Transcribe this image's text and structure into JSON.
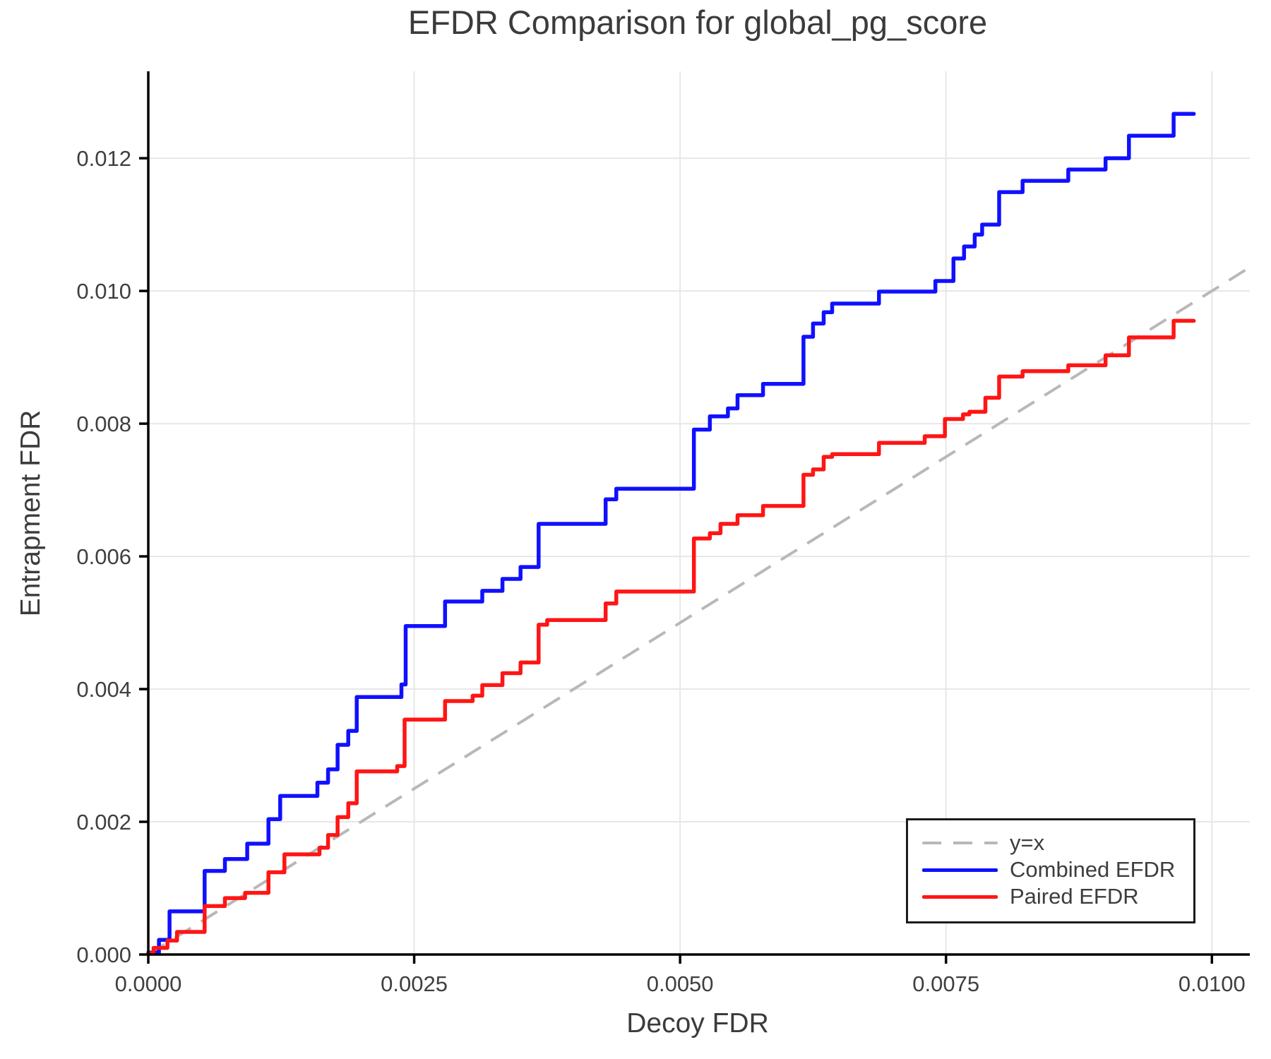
{
  "chart_data": {
    "type": "line",
    "title": "EFDR Comparison for global_pg_score",
    "xlabel": "Decoy FDR",
    "ylabel": "Entrapment FDR",
    "xlim": [
      0,
      0.01033
    ],
    "ylim": [
      0,
      0.01331
    ],
    "grid": true,
    "grid_color": "#e7e7e7",
    "axis_color": "#000000",
    "tick_label_color": "#3f3f3f",
    "xticks": {
      "values": [
        0,
        0.0025,
        0.005,
        0.0075,
        0.01
      ],
      "labels": [
        "0.0000",
        "0.0025",
        "0.0050",
        "0.0075",
        "0.0100"
      ]
    },
    "yticks": {
      "values": [
        0,
        0.002,
        0.004,
        0.006,
        0.008,
        0.01,
        0.012
      ],
      "labels": [
        "0.000",
        "0.002",
        "0.004",
        "0.006",
        "0.008",
        "0.010",
        "0.012"
      ]
    },
    "legend": {
      "position": "lower right",
      "entries": [
        {
          "label": "y=x",
          "color": "#b8b8b8",
          "dashed": true
        },
        {
          "label": "Combined EFDR",
          "color": "#1010ff",
          "dashed": false
        },
        {
          "label": "Paired EFDR",
          "color": "#ff1515",
          "dashed": false
        }
      ]
    },
    "series": [
      {
        "name": "y=x",
        "type": "line",
        "color": "#b8b8b8",
        "width": 4,
        "dash": [
          27,
          17
        ],
        "points": [
          [
            0,
            0
          ],
          [
            0.01033,
            0.01033
          ]
        ]
      },
      {
        "name": "Combined EFDR",
        "type": "step",
        "color": "#1010ff",
        "width": 5.5,
        "x_end": 0.00983,
        "steps": [
          [
            0.0,
            3e-05
          ],
          [
            0.0001,
            0.00022
          ],
          [
            0.0002,
            0.00065
          ],
          [
            0.00053,
            0.00126
          ],
          [
            0.00072,
            0.00144
          ],
          [
            0.00093,
            0.00167
          ],
          [
            0.00113,
            0.00204
          ],
          [
            0.00124,
            0.00239
          ],
          [
            0.00159,
            0.00259
          ],
          [
            0.00169,
            0.00279
          ],
          [
            0.00178,
            0.00316
          ],
          [
            0.00188,
            0.00337
          ],
          [
            0.00196,
            0.00388
          ],
          [
            0.00238,
            0.00407
          ],
          [
            0.00242,
            0.00495
          ],
          [
            0.00279,
            0.00532
          ],
          [
            0.00314,
            0.00548
          ],
          [
            0.00333,
            0.00566
          ],
          [
            0.0035,
            0.00584
          ],
          [
            0.00367,
            0.00649
          ],
          [
            0.0043,
            0.00686
          ],
          [
            0.0044,
            0.00702
          ],
          [
            0.00513,
            0.00791
          ],
          [
            0.00528,
            0.00811
          ],
          [
            0.00545,
            0.00823
          ],
          [
            0.00554,
            0.00843
          ],
          [
            0.00578,
            0.0086
          ],
          [
            0.00616,
            0.00931
          ],
          [
            0.00625,
            0.00951
          ],
          [
            0.00635,
            0.00968
          ],
          [
            0.00643,
            0.00981
          ],
          [
            0.00687,
            0.00999
          ],
          [
            0.0074,
            0.01015
          ],
          [
            0.00757,
            0.01049
          ],
          [
            0.00767,
            0.01067
          ],
          [
            0.00777,
            0.01085
          ],
          [
            0.00784,
            0.011
          ],
          [
            0.008,
            0.01149
          ],
          [
            0.00822,
            0.01166
          ],
          [
            0.00865,
            0.01183
          ],
          [
            0.009,
            0.012
          ],
          [
            0.00922,
            0.01234
          ],
          [
            0.00964,
            0.01267
          ]
        ]
      },
      {
        "name": "Paired EFDR",
        "type": "step",
        "color": "#ff1515",
        "width": 5.5,
        "x_end": 0.00983,
        "steps": [
          [
            0.0,
            2e-05
          ],
          [
            5e-05,
            0.0001
          ],
          [
            0.00018,
            0.00021
          ],
          [
            0.00027,
            0.00034
          ],
          [
            0.00053,
            0.00073
          ],
          [
            0.00072,
            0.00085
          ],
          [
            0.00091,
            0.00093
          ],
          [
            0.00113,
            0.00124
          ],
          [
            0.00128,
            0.00151
          ],
          [
            0.00161,
            0.00161
          ],
          [
            0.00169,
            0.0018
          ],
          [
            0.00178,
            0.00207
          ],
          [
            0.00188,
            0.00228
          ],
          [
            0.00196,
            0.00276
          ],
          [
            0.00234,
            0.00284
          ],
          [
            0.00241,
            0.00354
          ],
          [
            0.00279,
            0.00382
          ],
          [
            0.00305,
            0.0039
          ],
          [
            0.00314,
            0.00406
          ],
          [
            0.00333,
            0.00424
          ],
          [
            0.0035,
            0.0044
          ],
          [
            0.00367,
            0.00497
          ],
          [
            0.00375,
            0.00504
          ],
          [
            0.0043,
            0.00529
          ],
          [
            0.0044,
            0.00547
          ],
          [
            0.00513,
            0.00627
          ],
          [
            0.00528,
            0.00635
          ],
          [
            0.00538,
            0.00649
          ],
          [
            0.00554,
            0.00662
          ],
          [
            0.00578,
            0.00676
          ],
          [
            0.00616,
            0.00723
          ],
          [
            0.00625,
            0.00731
          ],
          [
            0.00635,
            0.0075
          ],
          [
            0.00643,
            0.00754
          ],
          [
            0.00687,
            0.00771
          ],
          [
            0.0073,
            0.00781
          ],
          [
            0.00749,
            0.00807
          ],
          [
            0.00766,
            0.00814
          ],
          [
            0.00772,
            0.00818
          ],
          [
            0.00787,
            0.00839
          ],
          [
            0.008,
            0.00871
          ],
          [
            0.00822,
            0.00879
          ],
          [
            0.00865,
            0.00888
          ],
          [
            0.009,
            0.00903
          ],
          [
            0.00922,
            0.0093
          ],
          [
            0.00964,
            0.00955
          ]
        ]
      }
    ]
  }
}
